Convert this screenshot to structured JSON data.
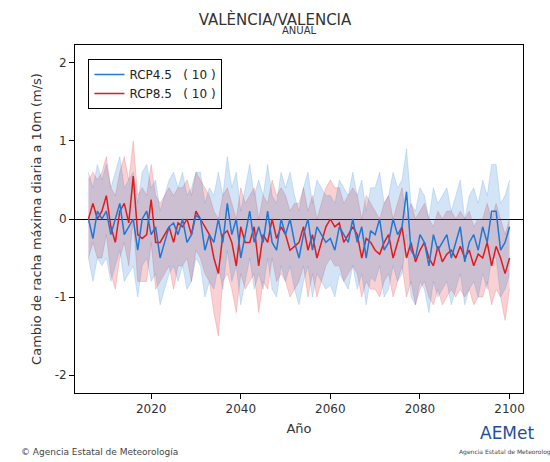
{
  "chart_data": {
    "type": "line",
    "title": "VALÈNCIA/VALENCIA",
    "subtitle": "ANUAL",
    "x_label": "Año",
    "y_label": "Cambio de racha máxima diaria a 10m (m/s)",
    "footer": "© Agencia Estatal de Meteorología",
    "logo": {
      "text": "AEMet",
      "caption": "Agencia Estatal de Meteorología"
    },
    "legend": "upper left",
    "grid": false,
    "xlim": [
      2003,
      2103
    ],
    "xticks": [
      2020,
      2040,
      2060,
      2080,
      2100
    ],
    "ylim": [
      -2.23,
      2.23
    ],
    "yticks": [
      -2,
      -1,
      0,
      1,
      2
    ],
    "x": [
      2006,
      2007,
      2008,
      2009,
      2010,
      2011,
      2012,
      2013,
      2014,
      2015,
      2016,
      2017,
      2018,
      2019,
      2020,
      2021,
      2022,
      2023,
      2024,
      2025,
      2026,
      2027,
      2028,
      2029,
      2030,
      2031,
      2032,
      2033,
      2034,
      2035,
      2036,
      2037,
      2038,
      2039,
      2040,
      2041,
      2042,
      2043,
      2044,
      2045,
      2046,
      2047,
      2048,
      2049,
      2050,
      2051,
      2052,
      2053,
      2054,
      2055,
      2056,
      2057,
      2058,
      2059,
      2060,
      2061,
      2062,
      2063,
      2064,
      2065,
      2066,
      2067,
      2068,
      2069,
      2070,
      2071,
      2072,
      2073,
      2074,
      2075,
      2076,
      2077,
      2078,
      2079,
      2080,
      2081,
      2082,
      2083,
      2084,
      2085,
      2086,
      2087,
      2088,
      2089,
      2090,
      2091,
      2092,
      2093,
      2094,
      2095,
      2096,
      2097,
      2098,
      2099,
      2100
    ],
    "series": [
      {
        "name": "RCP8.5   ( 10 )",
        "color": "#e31a1c",
        "values": [
          0.0,
          0.2,
          0.0,
          0.1,
          0.3,
          -0.1,
          -0.3,
          0.1,
          0.2,
          -0.05,
          0.55,
          -0.2,
          -0.25,
          -0.2,
          0.25,
          -0.3,
          -0.3,
          -0.2,
          -0.1,
          -0.3,
          -0.05,
          -0.1,
          0.0,
          -0.2,
          0.1,
          0.0,
          -0.1,
          -0.2,
          -0.5,
          -0.7,
          -0.2,
          -0.15,
          -0.3,
          -0.6,
          -0.1,
          -0.3,
          -0.3,
          -0.1,
          -0.6,
          -0.2,
          -0.3,
          0.0,
          -0.25,
          -0.1,
          -0.2,
          -0.4,
          -0.35,
          -0.3,
          -0.1,
          -0.4,
          -0.2,
          -0.5,
          -0.3,
          -0.1,
          0.0,
          -0.1,
          -0.05,
          -0.3,
          -0.2,
          -0.1,
          -0.2,
          -0.5,
          -0.25,
          -0.3,
          -0.4,
          -0.45,
          -0.3,
          -0.2,
          -0.5,
          -0.3,
          -0.1,
          -0.5,
          -0.3,
          -0.55,
          -0.4,
          -0.3,
          -0.5,
          -0.6,
          -0.35,
          -0.55,
          -0.45,
          -0.4,
          -0.5,
          -0.35,
          -0.5,
          -0.4,
          -0.6,
          -0.45,
          -0.5,
          -0.3,
          -0.6,
          -0.35,
          -0.5,
          -0.7,
          -0.5
        ],
        "upper": [
          0.5,
          0.6,
          0.5,
          0.6,
          0.8,
          0.4,
          0.3,
          0.6,
          0.8,
          0.5,
          1.0,
          0.3,
          0.4,
          0.3,
          0.7,
          0.3,
          0.2,
          0.3,
          0.4,
          0.3,
          0.4,
          0.4,
          0.5,
          0.3,
          0.6,
          0.5,
          0.4,
          0.3,
          0.1,
          0.0,
          0.3,
          0.4,
          0.2,
          0.0,
          0.4,
          0.2,
          0.3,
          0.4,
          0.0,
          0.3,
          0.2,
          0.5,
          0.3,
          0.4,
          0.3,
          0.1,
          0.2,
          0.2,
          0.4,
          0.1,
          0.3,
          0.0,
          0.2,
          0.4,
          0.5,
          0.4,
          0.4,
          0.2,
          0.3,
          0.4,
          0.3,
          0.0,
          0.3,
          0.2,
          0.1,
          0.0,
          0.2,
          0.3,
          0.0,
          0.2,
          0.4,
          0.0,
          0.2,
          0.0,
          0.1,
          0.2,
          0.0,
          -0.1,
          0.1,
          0.0,
          0.1,
          0.1,
          0.0,
          0.1,
          0.0,
          0.1,
          -0.1,
          0.0,
          0.0,
          0.2,
          0.0,
          0.2,
          0.0,
          -0.2,
          0.0
        ],
        "lower": [
          -0.5,
          -0.3,
          -0.5,
          -0.5,
          -0.2,
          -0.7,
          -0.9,
          -0.5,
          -0.3,
          -0.6,
          0.0,
          -0.8,
          -0.8,
          -0.8,
          -0.3,
          -0.9,
          -0.8,
          -0.7,
          -0.6,
          -0.9,
          -0.6,
          -0.6,
          -0.5,
          -0.8,
          -0.4,
          -0.5,
          -0.7,
          -0.8,
          -1.2,
          -1.5,
          -0.8,
          -0.7,
          -0.9,
          -1.2,
          -0.7,
          -0.9,
          -0.8,
          -0.7,
          -1.2,
          -0.8,
          -0.9,
          -0.5,
          -0.8,
          -0.7,
          -0.8,
          -1.0,
          -0.9,
          -0.8,
          -0.6,
          -1.0,
          -0.7,
          -1.0,
          -0.8,
          -0.6,
          -0.5,
          -0.6,
          -0.6,
          -0.8,
          -0.7,
          -0.6,
          -0.7,
          -1.0,
          -0.8,
          -0.9,
          -0.9,
          -1.0,
          -0.8,
          -0.7,
          -1.0,
          -0.8,
          -0.6,
          -1.0,
          -0.8,
          -1.1,
          -0.9,
          -0.8,
          -1.0,
          -1.1,
          -0.9,
          -1.1,
          -1.0,
          -0.9,
          -1.0,
          -0.9,
          -1.0,
          -0.9,
          -1.1,
          -1.0,
          -1.0,
          -0.8,
          -1.1,
          -0.9,
          -1.0,
          -1.3,
          -0.9
        ]
      },
      {
        "name": "RCP4.5   ( 10 )",
        "color": "#1f78d4",
        "values": [
          0.0,
          -0.25,
          0.1,
          0.0,
          0.1,
          -0.2,
          0.0,
          0.2,
          -0.2,
          -0.1,
          0.0,
          -0.4,
          0.0,
          0.1,
          -0.2,
          -0.1,
          -0.5,
          -0.3,
          -0.1,
          -0.05,
          -0.2,
          0.0,
          -0.3,
          -0.2,
          0.05,
          0.0,
          -0.4,
          -0.2,
          -0.3,
          0.0,
          -0.3,
          0.2,
          -0.2,
          0.0,
          -0.5,
          -0.2,
          0.1,
          -0.3,
          -0.1,
          -0.3,
          0.1,
          -0.3,
          -0.4,
          0.0,
          -0.2,
          0.0,
          -0.3,
          -0.5,
          -0.2,
          0.0,
          -0.4,
          -0.1,
          -0.2,
          -0.3,
          -0.25,
          -0.4,
          -0.1,
          -0.2,
          -0.3,
          0.0,
          -0.3,
          -0.1,
          -0.5,
          -0.15,
          -0.2,
          0.0,
          -0.4,
          -0.3,
          0.0,
          -0.2,
          -0.1,
          0.35,
          -0.4,
          -0.5,
          -0.2,
          -0.3,
          -0.6,
          -0.2,
          -0.4,
          -0.3,
          -0.2,
          -0.5,
          -0.3,
          -0.1,
          -0.55,
          -0.3,
          -0.2,
          -0.4,
          -0.1,
          -0.3,
          0.1,
          0.1,
          -0.4,
          -0.3,
          -0.1
        ],
        "upper": [
          0.6,
          0.4,
          0.7,
          0.5,
          0.7,
          0.4,
          0.6,
          0.8,
          0.4,
          0.5,
          0.6,
          0.2,
          0.6,
          0.7,
          0.4,
          0.5,
          0.1,
          0.3,
          0.5,
          0.6,
          0.4,
          0.6,
          0.3,
          0.4,
          0.6,
          0.6,
          0.2,
          0.4,
          0.3,
          0.6,
          0.3,
          0.8,
          0.4,
          0.6,
          0.1,
          0.4,
          0.7,
          0.3,
          0.5,
          0.3,
          0.7,
          0.3,
          0.2,
          0.6,
          0.4,
          0.6,
          0.3,
          0.1,
          0.4,
          0.6,
          0.2,
          0.5,
          0.4,
          0.3,
          0.3,
          0.2,
          0.5,
          0.4,
          0.3,
          0.6,
          0.3,
          0.5,
          0.1,
          0.4,
          0.4,
          0.6,
          0.2,
          0.3,
          0.6,
          0.4,
          0.5,
          0.9,
          0.2,
          0.1,
          0.4,
          0.3,
          0.0,
          0.4,
          0.2,
          0.3,
          0.4,
          0.1,
          0.3,
          0.5,
          0.0,
          0.3,
          0.4,
          0.2,
          0.5,
          0.3,
          0.7,
          0.7,
          0.2,
          0.3,
          0.5
        ],
        "lower": [
          -0.5,
          -0.8,
          -0.5,
          -0.6,
          -0.5,
          -0.8,
          -0.6,
          -0.4,
          -0.8,
          -0.7,
          -0.6,
          -1.0,
          -0.6,
          -0.5,
          -0.8,
          -0.7,
          -1.1,
          -0.9,
          -0.7,
          -0.6,
          -0.8,
          -0.6,
          -0.9,
          -0.8,
          -0.5,
          -0.6,
          -1.0,
          -0.8,
          -0.9,
          -0.6,
          -0.9,
          -0.4,
          -0.8,
          -0.6,
          -1.1,
          -0.8,
          -0.5,
          -0.9,
          -0.7,
          -0.9,
          -0.5,
          -0.9,
          -1.0,
          -0.6,
          -0.8,
          -0.6,
          -0.9,
          -1.1,
          -0.8,
          -0.6,
          -1.0,
          -0.7,
          -0.8,
          -0.9,
          -0.85,
          -1.0,
          -0.7,
          -0.8,
          -0.9,
          -0.6,
          -0.9,
          -0.7,
          -1.1,
          -0.75,
          -0.8,
          -0.6,
          -1.0,
          -0.9,
          -0.6,
          -0.8,
          -0.7,
          -0.2,
          -1.0,
          -1.1,
          -0.8,
          -0.9,
          -1.2,
          -0.8,
          -1.0,
          -0.9,
          -0.8,
          -1.1,
          -0.9,
          -0.7,
          -1.1,
          -0.9,
          -0.8,
          -1.0,
          -0.7,
          -0.9,
          -0.5,
          -0.5,
          -1.0,
          -0.9,
          -0.7
        ]
      }
    ]
  }
}
